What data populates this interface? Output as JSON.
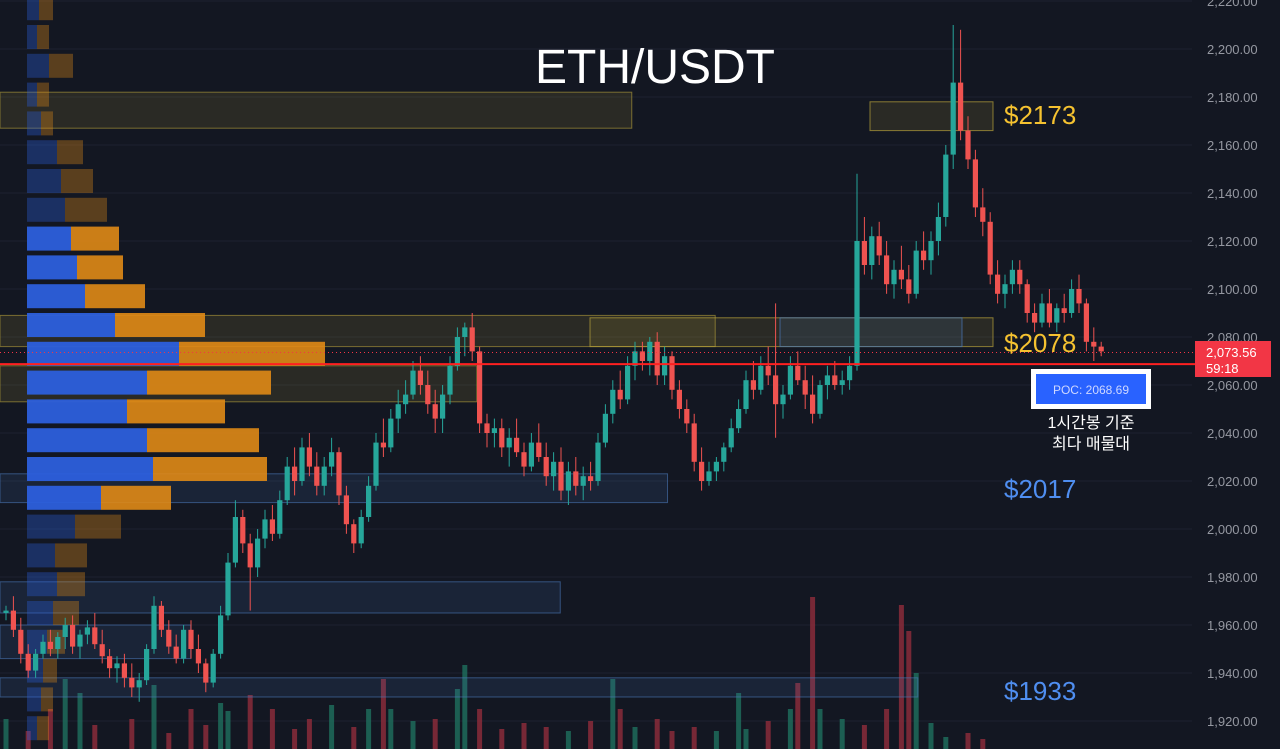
{
  "chart_data": {
    "type": "candlestick",
    "title": "ETH/USDT",
    "y_axis": {
      "ticks": [
        "2,220.00",
        "2,200.00",
        "2,180.00",
        "2,160.00",
        "2,140.00",
        "2,120.00",
        "2,100.00",
        "2,080.00",
        "2,060.00",
        "2,040.00",
        "2,020.00",
        "2,000.00",
        "1,980.00",
        "1,960.00",
        "1,940.00",
        "1,920.00"
      ],
      "range": [
        1915,
        2221
      ]
    },
    "current_price": {
      "price_label": "2,073.56",
      "countdown": "59:18",
      "value": 2073.56
    },
    "poc": {
      "label": "POC: 2068.69",
      "value": 2068.69,
      "note_line1": "1시간봉 기준",
      "note_line2": "최다 매물대"
    },
    "levels": [
      {
        "label": "$2173",
        "value": 2173,
        "color": "#f5c230"
      },
      {
        "label": "$2078",
        "value": 2078,
        "color": "#f5c230"
      },
      {
        "label": "$2017",
        "value": 2017,
        "color": "#4f8ef0"
      },
      {
        "label": "$1933",
        "value": 1933,
        "color": "#4f8ef0"
      }
    ],
    "zones": [
      {
        "low": 2167,
        "high": 2182,
        "extent": 0.53,
        "color": "#b8a23a"
      },
      {
        "low": 2053,
        "high": 2068,
        "extent": 0.4,
        "color": "#b8a23a"
      },
      {
        "low": 2076,
        "high": 2089,
        "extent": 0.6,
        "color": "#b8a23a"
      },
      {
        "low": 1965,
        "high": 1978,
        "extent": 0.47,
        "color": "#4a78b8"
      },
      {
        "low": 1946,
        "high": 1960,
        "extent": 0.16,
        "color": "#4a78b8"
      },
      {
        "low": 2011,
        "high": 2023,
        "extent": 0.56,
        "color": "#4a78b8"
      },
      {
        "low": 1930,
        "high": 1938,
        "extent": 0.77,
        "color": "#4a78b8"
      }
    ],
    "volume_profile": [
      {
        "price": 2217,
        "buy": 12,
        "sell": 14
      },
      {
        "price": 2205,
        "buy": 10,
        "sell": 12
      },
      {
        "price": 2193,
        "buy": 22,
        "sell": 24
      },
      {
        "price": 2181,
        "buy": 10,
        "sell": 12
      },
      {
        "price": 2169,
        "buy": 14,
        "sell": 12
      },
      {
        "price": 2157,
        "buy": 30,
        "sell": 26
      },
      {
        "price": 2145,
        "buy": 34,
        "sell": 32
      },
      {
        "price": 2133,
        "buy": 38,
        "sell": 42
      },
      {
        "price": 2121,
        "buy": 44,
        "sell": 48
      },
      {
        "price": 2109,
        "buy": 50,
        "sell": 46
      },
      {
        "price": 2097,
        "buy": 58,
        "sell": 60
      },
      {
        "price": 2085,
        "buy": 88,
        "sell": 90
      },
      {
        "price": 2073,
        "buy": 152,
        "sell": 146
      },
      {
        "price": 2061,
        "buy": 120,
        "sell": 124
      },
      {
        "price": 2049,
        "buy": 100,
        "sell": 98
      },
      {
        "price": 2037,
        "buy": 120,
        "sell": 112
      },
      {
        "price": 2025,
        "buy": 126,
        "sell": 114
      },
      {
        "price": 2013,
        "buy": 74,
        "sell": 70
      },
      {
        "price": 2001,
        "buy": 48,
        "sell": 46
      },
      {
        "price": 1989,
        "buy": 28,
        "sell": 32
      },
      {
        "price": 1977,
        "buy": 30,
        "sell": 28
      },
      {
        "price": 1965,
        "buy": 26,
        "sell": 26
      },
      {
        "price": 1953,
        "buy": 20,
        "sell": 18
      },
      {
        "price": 1941,
        "buy": 16,
        "sell": 14
      },
      {
        "price": 1929,
        "buy": 14,
        "sell": 12
      },
      {
        "price": 1917,
        "buy": 10,
        "sell": 12
      }
    ],
    "candles": [
      [
        1965,
        1968,
        1962,
        1966
      ],
      [
        1966,
        1972,
        1955,
        1958
      ],
      [
        1958,
        1963,
        1944,
        1948
      ],
      [
        1948,
        1952,
        1938,
        1941
      ],
      [
        1941,
        1950,
        1938,
        1948
      ],
      [
        1948,
        1956,
        1946,
        1953
      ],
      [
        1953,
        1958,
        1947,
        1950
      ],
      [
        1950,
        1957,
        1946,
        1955
      ],
      [
        1955,
        1963,
        1950,
        1960
      ],
      [
        1960,
        1964,
        1948,
        1951
      ],
      [
        1951,
        1958,
        1946,
        1956
      ],
      [
        1956,
        1962,
        1952,
        1959
      ],
      [
        1959,
        1965,
        1950,
        1952
      ],
      [
        1952,
        1958,
        1944,
        1947
      ],
      [
        1947,
        1950,
        1938,
        1942
      ],
      [
        1942,
        1947,
        1936,
        1944
      ],
      [
        1944,
        1948,
        1934,
        1938
      ],
      [
        1938,
        1944,
        1930,
        1934
      ],
      [
        1934,
        1940,
        1928,
        1937
      ],
      [
        1937,
        1952,
        1935,
        1950
      ],
      [
        1950,
        1972,
        1948,
        1968
      ],
      [
        1968,
        1970,
        1955,
        1958
      ],
      [
        1958,
        1962,
        1948,
        1951
      ],
      [
        1951,
        1956,
        1944,
        1946
      ],
      [
        1946,
        1960,
        1944,
        1958
      ],
      [
        1958,
        1962,
        1946,
        1950
      ],
      [
        1950,
        1956,
        1940,
        1944
      ],
      [
        1944,
        1946,
        1932,
        1936
      ],
      [
        1936,
        1950,
        1934,
        1948
      ],
      [
        1948,
        1968,
        1946,
        1964
      ],
      [
        1964,
        1990,
        1962,
        1986
      ],
      [
        1986,
        2012,
        1984,
        2005
      ],
      [
        2005,
        2008,
        1990,
        1994
      ],
      [
        1994,
        1998,
        1966,
        1984
      ],
      [
        1984,
        2000,
        1980,
        1996
      ],
      [
        1996,
        2008,
        1992,
        2004
      ],
      [
        2004,
        2010,
        1995,
        1998
      ],
      [
        1998,
        2016,
        1996,
        2012
      ],
      [
        2012,
        2030,
        2010,
        2026
      ],
      [
        2026,
        2034,
        2014,
        2020
      ],
      [
        2020,
        2038,
        2018,
        2034
      ],
      [
        2034,
        2040,
        2022,
        2026
      ],
      [
        2026,
        2032,
        2014,
        2018
      ],
      [
        2018,
        2030,
        2014,
        2026
      ],
      [
        2026,
        2038,
        2022,
        2032
      ],
      [
        2032,
        2034,
        2010,
        2014
      ],
      [
        2014,
        2018,
        1998,
        2002
      ],
      [
        2002,
        2004,
        1990,
        1994
      ],
      [
        1994,
        2008,
        1992,
        2005
      ],
      [
        2005,
        2022,
        2003,
        2018
      ],
      [
        2018,
        2040,
        2016,
        2036
      ],
      [
        2036,
        2046,
        2030,
        2034
      ],
      [
        2034,
        2050,
        2032,
        2046
      ],
      [
        2046,
        2058,
        2040,
        2052
      ],
      [
        2052,
        2062,
        2048,
        2056
      ],
      [
        2056,
        2070,
        2054,
        2066
      ],
      [
        2066,
        2072,
        2056,
        2060
      ],
      [
        2060,
        2066,
        2048,
        2052
      ],
      [
        2052,
        2058,
        2040,
        2046
      ],
      [
        2046,
        2060,
        2040,
        2056
      ],
      [
        2056,
        2072,
        2052,
        2068
      ],
      [
        2068,
        2084,
        2066,
        2080
      ],
      [
        2080,
        2086,
        2072,
        2084
      ],
      [
        2084,
        2090,
        2070,
        2074
      ],
      [
        2074,
        2076,
        2040,
        2044
      ],
      [
        2044,
        2048,
        2034,
        2040
      ],
      [
        2040,
        2046,
        2034,
        2042
      ],
      [
        2042,
        2046,
        2030,
        2034
      ],
      [
        2034,
        2042,
        2026,
        2038
      ],
      [
        2038,
        2046,
        2030,
        2032
      ],
      [
        2032,
        2036,
        2022,
        2026
      ],
      [
        2026,
        2040,
        2024,
        2036
      ],
      [
        2036,
        2044,
        2028,
        2030
      ],
      [
        2030,
        2036,
        2018,
        2022
      ],
      [
        2022,
        2032,
        2016,
        2028
      ],
      [
        2028,
        2034,
        2012,
        2016
      ],
      [
        2016,
        2028,
        2010,
        2024
      ],
      [
        2024,
        2030,
        2014,
        2018
      ],
      [
        2018,
        2026,
        2012,
        2022
      ],
      [
        2022,
        2028,
        2016,
        2020
      ],
      [
        2020,
        2040,
        2018,
        2036
      ],
      [
        2036,
        2052,
        2034,
        2048
      ],
      [
        2048,
        2062,
        2044,
        2058
      ],
      [
        2058,
        2066,
        2050,
        2054
      ],
      [
        2054,
        2072,
        2052,
        2068
      ],
      [
        2068,
        2078,
        2062,
        2074
      ],
      [
        2074,
        2078,
        2066,
        2070
      ],
      [
        2070,
        2080,
        2064,
        2078
      ],
      [
        2078,
        2082,
        2060,
        2064
      ],
      [
        2064,
        2076,
        2060,
        2072
      ],
      [
        2072,
        2074,
        2054,
        2058
      ],
      [
        2058,
        2062,
        2046,
        2050
      ],
      [
        2050,
        2054,
        2040,
        2044
      ],
      [
        2044,
        2048,
        2024,
        2028
      ],
      [
        2028,
        2034,
        2016,
        2020
      ],
      [
        2020,
        2028,
        2018,
        2024
      ],
      [
        2024,
        2030,
        2020,
        2028
      ],
      [
        2028,
        2036,
        2024,
        2034
      ],
      [
        2034,
        2046,
        2032,
        2042
      ],
      [
        2042,
        2054,
        2040,
        2050
      ],
      [
        2050,
        2066,
        2048,
        2062
      ],
      [
        2062,
        2070,
        2054,
        2058
      ],
      [
        2058,
        2072,
        2056,
        2068
      ],
      [
        2068,
        2076,
        2060,
        2064
      ],
      [
        2064,
        2094,
        2038,
        2052
      ],
      [
        2052,
        2060,
        2046,
        2056
      ],
      [
        2056,
        2072,
        2054,
        2068
      ],
      [
        2068,
        2074,
        2060,
        2062
      ],
      [
        2062,
        2068,
        2050,
        2056
      ],
      [
        2056,
        2064,
        2044,
        2048
      ],
      [
        2048,
        2062,
        2046,
        2060
      ],
      [
        2060,
        2068,
        2054,
        2064
      ],
      [
        2064,
        2070,
        2058,
        2060
      ],
      [
        2060,
        2066,
        2056,
        2062
      ],
      [
        2062,
        2072,
        2058,
        2068
      ],
      [
        2068,
        2148,
        2066,
        2120
      ],
      [
        2120,
        2130,
        2106,
        2110
      ],
      [
        2110,
        2126,
        2104,
        2122
      ],
      [
        2122,
        2128,
        2110,
        2114
      ],
      [
        2114,
        2120,
        2098,
        2102
      ],
      [
        2102,
        2112,
        2096,
        2108
      ],
      [
        2108,
        2118,
        2100,
        2104
      ],
      [
        2104,
        2110,
        2094,
        2098
      ],
      [
        2098,
        2120,
        2096,
        2116
      ],
      [
        2116,
        2124,
        2108,
        2112
      ],
      [
        2112,
        2124,
        2106,
        2120
      ],
      [
        2120,
        2136,
        2114,
        2130
      ],
      [
        2130,
        2160,
        2126,
        2156
      ],
      [
        2156,
        2210,
        2150,
        2186
      ],
      [
        2186,
        2208,
        2162,
        2166
      ],
      [
        2166,
        2172,
        2150,
        2154
      ],
      [
        2154,
        2158,
        2130,
        2134
      ],
      [
        2134,
        2142,
        2122,
        2128
      ],
      [
        2128,
        2132,
        2102,
        2106
      ],
      [
        2106,
        2112,
        2094,
        2098
      ],
      [
        2098,
        2106,
        2092,
        2102
      ],
      [
        2102,
        2112,
        2098,
        2108
      ],
      [
        2108,
        2112,
        2098,
        2102
      ],
      [
        2102,
        2104,
        2086,
        2090
      ],
      [
        2090,
        2094,
        2082,
        2086
      ],
      [
        2086,
        2098,
        2084,
        2094
      ],
      [
        2094,
        2100,
        2084,
        2086
      ],
      [
        2086,
        2094,
        2082,
        2092
      ],
      [
        2092,
        2098,
        2086,
        2090
      ],
      [
        2090,
        2104,
        2088,
        2100
      ],
      [
        2100,
        2106,
        2090,
        2094
      ],
      [
        2094,
        2096,
        2074,
        2078
      ],
      [
        2078,
        2084,
        2070,
        2076
      ],
      [
        2076,
        2078,
        2072,
        2074
      ]
    ],
    "volumes": [
      {
        "c": 0,
        "v": 30
      },
      {
        "c": 3,
        "v": 18
      },
      {
        "c": 6,
        "v": 40
      },
      {
        "c": 8,
        "v": 70
      },
      {
        "c": 10,
        "v": 56
      },
      {
        "c": 12,
        "v": 24
      },
      {
        "c": 17,
        "v": 30
      },
      {
        "c": 20,
        "v": 64
      },
      {
        "c": 22,
        "v": 16
      },
      {
        "c": 25,
        "v": 40
      },
      {
        "c": 27,
        "v": 24
      },
      {
        "c": 29,
        "v": 46
      },
      {
        "c": 30,
        "v": 38
      },
      {
        "c": 33,
        "v": 54
      },
      {
        "c": 36,
        "v": 40
      },
      {
        "c": 39,
        "v": 20
      },
      {
        "c": 41,
        "v": 30
      },
      {
        "c": 44,
        "v": 44
      },
      {
        "c": 47,
        "v": 22
      },
      {
        "c": 49,
        "v": 40
      },
      {
        "c": 51,
        "v": 70
      },
      {
        "c": 52,
        "v": 40
      },
      {
        "c": 55,
        "v": 28
      },
      {
        "c": 58,
        "v": 30
      },
      {
        "c": 61,
        "v": 60
      },
      {
        "c": 62,
        "v": 84
      },
      {
        "c": 64,
        "v": 40
      },
      {
        "c": 67,
        "v": 20
      },
      {
        "c": 70,
        "v": 26
      },
      {
        "c": 73,
        "v": 22
      },
      {
        "c": 76,
        "v": 18
      },
      {
        "c": 79,
        "v": 28
      },
      {
        "c": 82,
        "v": 70
      },
      {
        "c": 83,
        "v": 40
      },
      {
        "c": 85,
        "v": 22
      },
      {
        "c": 88,
        "v": 30
      },
      {
        "c": 90,
        "v": 18
      },
      {
        "c": 93,
        "v": 22
      },
      {
        "c": 96,
        "v": 18
      },
      {
        "c": 99,
        "v": 56
      },
      {
        "c": 100,
        "v": 20
      },
      {
        "c": 103,
        "v": 28
      },
      {
        "c": 106,
        "v": 40
      },
      {
        "c": 107,
        "v": 66
      },
      {
        "c": 109,
        "v": 152
      },
      {
        "c": 110,
        "v": 40
      },
      {
        "c": 113,
        "v": 30
      },
      {
        "c": 116,
        "v": 24
      },
      {
        "c": 119,
        "v": 40
      },
      {
        "c": 121,
        "v": 144
      },
      {
        "c": 122,
        "v": 118
      },
      {
        "c": 123,
        "v": 76
      },
      {
        "c": 125,
        "v": 26
      },
      {
        "c": 127,
        "v": 12
      },
      {
        "c": 130,
        "v": 16
      },
      {
        "c": 132,
        "v": 10
      }
    ]
  }
}
